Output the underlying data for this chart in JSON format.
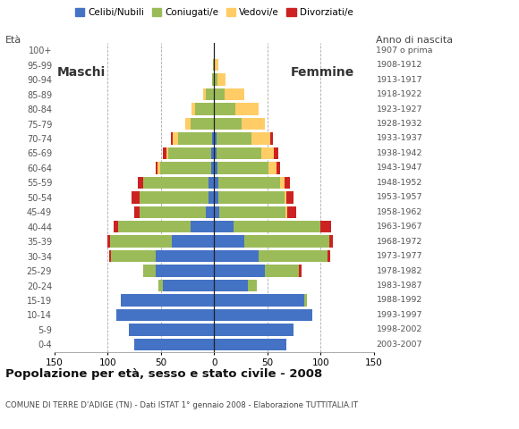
{
  "age_groups": [
    "0-4",
    "5-9",
    "10-14",
    "15-19",
    "20-24",
    "25-29",
    "30-34",
    "35-39",
    "40-44",
    "45-49",
    "50-54",
    "55-59",
    "60-64",
    "65-69",
    "70-74",
    "75-79",
    "80-84",
    "85-89",
    "90-94",
    "95-99",
    "100+"
  ],
  "birth_years": [
    "2003-2007",
    "1998-2002",
    "1993-1997",
    "1988-1992",
    "1983-1987",
    "1978-1982",
    "1973-1977",
    "1968-1972",
    "1963-1967",
    "1958-1962",
    "1953-1957",
    "1948-1952",
    "1943-1947",
    "1938-1942",
    "1933-1937",
    "1928-1932",
    "1923-1927",
    "1918-1922",
    "1913-1917",
    "1908-1912",
    "1907 o prima"
  ],
  "males_celibe": [
    75,
    80,
    92,
    88,
    48,
    55,
    55,
    40,
    22,
    8,
    5,
    5,
    3,
    3,
    2,
    0,
    0,
    0,
    0,
    0,
    0
  ],
  "males_coniugato": [
    0,
    0,
    0,
    0,
    4,
    12,
    42,
    58,
    68,
    62,
    65,
    62,
    48,
    40,
    32,
    22,
    18,
    8,
    2,
    1,
    0
  ],
  "males_vedovo": [
    0,
    0,
    0,
    0,
    0,
    0,
    0,
    0,
    0,
    0,
    0,
    0,
    2,
    2,
    5,
    5,
    3,
    2,
    0,
    0,
    0
  ],
  "males_divorziato": [
    0,
    0,
    0,
    0,
    0,
    0,
    2,
    2,
    4,
    5,
    8,
    5,
    2,
    3,
    2,
    0,
    0,
    0,
    0,
    0,
    0
  ],
  "females_nubile": [
    68,
    75,
    92,
    85,
    32,
    48,
    42,
    28,
    18,
    5,
    4,
    4,
    3,
    2,
    2,
    0,
    0,
    0,
    0,
    0,
    0
  ],
  "females_coniugata": [
    0,
    0,
    0,
    2,
    8,
    32,
    65,
    80,
    82,
    62,
    62,
    58,
    48,
    42,
    33,
    26,
    20,
    10,
    3,
    1,
    0
  ],
  "females_vedova": [
    0,
    0,
    0,
    0,
    0,
    0,
    0,
    0,
    0,
    2,
    2,
    4,
    8,
    12,
    18,
    22,
    22,
    18,
    8,
    3,
    1
  ],
  "females_divorziata": [
    0,
    0,
    0,
    0,
    0,
    2,
    2,
    4,
    10,
    8,
    7,
    5,
    3,
    4,
    2,
    0,
    0,
    0,
    0,
    0,
    0
  ],
  "color_celibe": "#4472C4",
  "color_coniugato": "#9BBB59",
  "color_vedovo": "#FFCC66",
  "color_divorziato": "#CC2222",
  "xlim": 150,
  "title": "Popolazione per età, sesso e stato civile - 2008",
  "subtitle": "COMUNE DI TERRE D'ADIGE (TN) - Dati ISTAT 1° gennaio 2008 - Elaborazione TUTTITALIA.IT",
  "legend_labels": [
    "Celibi/Nubili",
    "Coniugati/e",
    "Vedovi/e",
    "Divorziati/e"
  ],
  "label_eta": "Età",
  "label_anno": "Anno di nascita",
  "label_maschi": "Maschi",
  "label_femmine": "Femmine"
}
